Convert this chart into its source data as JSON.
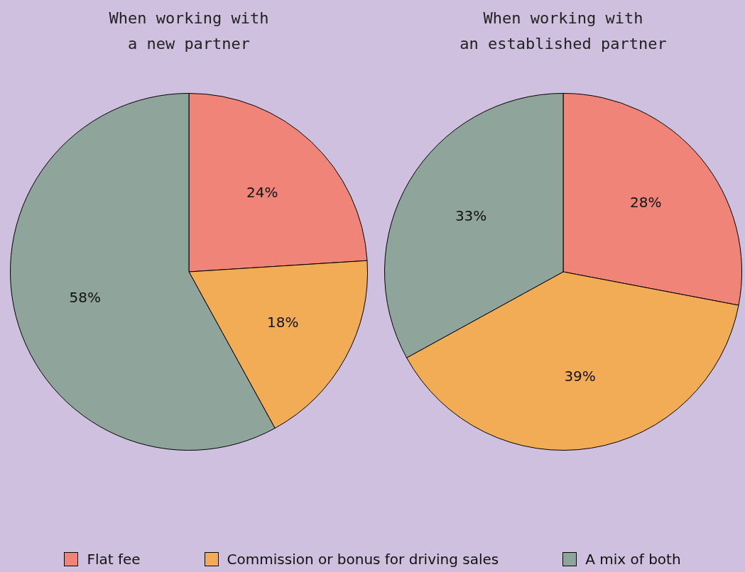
{
  "chart_data": [
    {
      "type": "pie",
      "title": "When working with\na new partner",
      "categories": [
        "Flat fee",
        "Commission or bonus for driving sales",
        "A mix of both"
      ],
      "values": [
        24,
        18,
        58
      ],
      "value_labels": [
        "24%",
        "18%",
        "58%"
      ],
      "colors": [
        "#f08478",
        "#f2ac55",
        "#8fa59b"
      ],
      "legend": "bottom"
    },
    {
      "type": "pie",
      "title": "When working with\nan established partner",
      "values": [
        28,
        39,
        33
      ],
      "value_labels": [
        "28%",
        "39%",
        "33%"
      ],
      "colors": [
        "#f08478",
        "#f2ac55",
        "#8fa59b"
      ]
    }
  ]
}
